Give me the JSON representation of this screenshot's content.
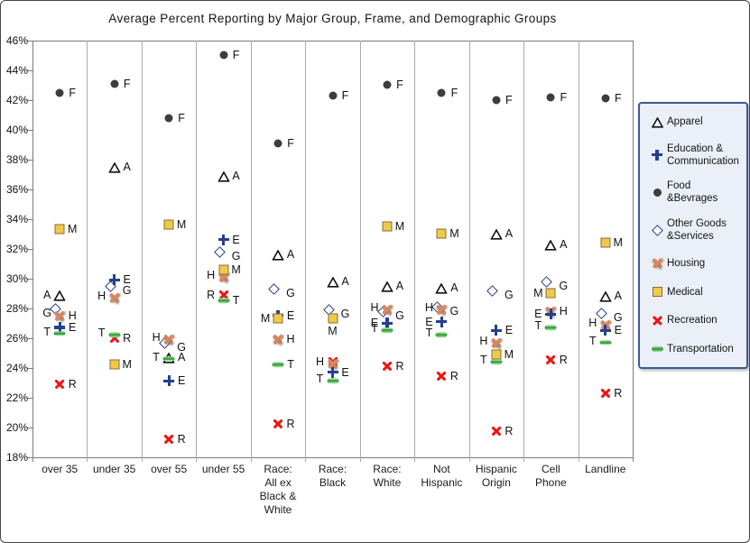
{
  "chart_data": {
    "type": "scatter",
    "title": "Average Percent Reporting by Major Group, Frame, and Demographic Groups",
    "xlabel": "",
    "ylabel": "",
    "ylim": [
      18,
      46
    ],
    "ytick_step": 2,
    "ytick_labels": [
      "46%",
      "44%",
      "42%",
      "40%",
      "38%",
      "36%",
      "34%",
      "32%",
      "30%",
      "28%",
      "26%",
      "24%",
      "22%",
      "20%",
      "18%"
    ],
    "grid": "vertical category separators only, no horizontal gridlines",
    "legend_position": "right",
    "point_labels": "each point labeled with series letter",
    "categories": [
      "over 35",
      "under 35",
      "over 55",
      "under 55",
      "Race: All ex Black & White",
      "Race: Black",
      "Race: White",
      "Not Hispanic",
      "Hispanic Origin",
      "Cell Phone",
      "Landline"
    ],
    "category_label_lines": [
      [
        "over 35"
      ],
      [
        "under 35"
      ],
      [
        "over 55"
      ],
      [
        "under 55"
      ],
      [
        "Race:",
        "All ex",
        "Black &",
        "White"
      ],
      [
        "Race:",
        "Black"
      ],
      [
        "Race:",
        "White"
      ],
      [
        "Not",
        "Hispanic"
      ],
      [
        "Hispanic",
        "Origin"
      ],
      [
        "Cell",
        "Phone"
      ],
      [
        "Landline"
      ]
    ],
    "series": [
      {
        "name": "Apparel",
        "letter": "A",
        "marker": "open-triangle",
        "color": "#111111",
        "values": [
          28.9,
          37.5,
          24.7,
          36.9,
          31.6,
          29.8,
          29.5,
          29.4,
          33.0,
          32.3,
          28.8
        ],
        "label_sides": [
          "l",
          "r",
          "r",
          "r",
          "r",
          "r",
          "r",
          "r",
          "r",
          "r",
          "r"
        ]
      },
      {
        "name": "Education &\nCommunication",
        "letter": "E",
        "marker": "plus",
        "color": "#24408e",
        "values": [
          26.7,
          29.9,
          23.1,
          32.6,
          27.5,
          23.7,
          27.0,
          27.1,
          26.5,
          27.6,
          26.5
        ],
        "label_sides": [
          "r",
          "r",
          "r",
          "r",
          "r",
          "r",
          "l",
          "l",
          "r",
          "l",
          "r"
        ]
      },
      {
        "name": "Food\n&Bevrages",
        "letter": "F",
        "marker": "filled-circle",
        "color": "#3d3d3d",
        "values": [
          42.5,
          43.1,
          40.8,
          45.0,
          39.1,
          42.3,
          43.0,
          42.5,
          42.0,
          42.2,
          42.1
        ],
        "label_sides": [
          "r",
          "r",
          "r",
          "r",
          "r",
          "r",
          "r",
          "r",
          "r",
          "r",
          "r"
        ]
      },
      {
        "name": "Other Goods\n&Services",
        "letter": "G",
        "marker": "open-diamond",
        "color": "#24408e",
        "values": [
          27.7,
          29.2,
          25.4,
          31.5,
          29.0,
          27.6,
          27.5,
          27.8,
          28.9,
          29.5,
          27.4
        ],
        "label_sides": [
          "l",
          "r",
          "r",
          "r",
          "r",
          "r",
          "r",
          "r",
          "r",
          "r",
          "r"
        ]
      },
      {
        "name": "Housing",
        "letter": "H",
        "marker": "x-orange",
        "color": "#d8875f",
        "values": [
          27.5,
          28.7,
          25.9,
          30.1,
          25.9,
          24.3,
          27.9,
          27.9,
          25.7,
          27.8,
          26.9
        ],
        "label_sides": [
          "r",
          "l",
          "l",
          "l",
          "r",
          "l",
          "l",
          "l",
          "l",
          "r",
          "l"
        ]
      },
      {
        "name": "Medical",
        "letter": "M",
        "marker": "filled-square",
        "color": "#efc94e",
        "border_color": "#8a6d2a",
        "values": [
          33.3,
          24.2,
          33.6,
          30.6,
          27.3,
          27.3,
          33.5,
          33.0,
          24.9,
          29.0,
          32.4
        ],
        "label_sides": [
          "r",
          "r",
          "r",
          "r",
          "l",
          "b",
          "r",
          "r",
          "r",
          "l",
          "r"
        ]
      },
      {
        "name": "Recreation",
        "letter": "R",
        "marker": "x-red",
        "color": "#ee1212",
        "values": [
          22.9,
          26.0,
          19.2,
          28.9,
          20.2,
          24.4,
          24.1,
          23.4,
          19.7,
          24.5,
          22.3
        ],
        "label_sides": [
          "r",
          "r",
          "r",
          "l",
          "r",
          "n",
          "r",
          "r",
          "r",
          "r",
          "r"
        ]
      },
      {
        "name": "Transportation",
        "letter": "T",
        "marker": "dash-green",
        "color": "#3fa33f",
        "values": [
          26.3,
          26.2,
          24.6,
          28.5,
          24.2,
          23.1,
          26.5,
          26.2,
          24.4,
          26.7,
          25.7
        ],
        "label_sides": [
          "l",
          "l",
          "l",
          "r",
          "r",
          "l",
          "l",
          "l",
          "l",
          "l",
          "l"
        ]
      }
    ]
  }
}
